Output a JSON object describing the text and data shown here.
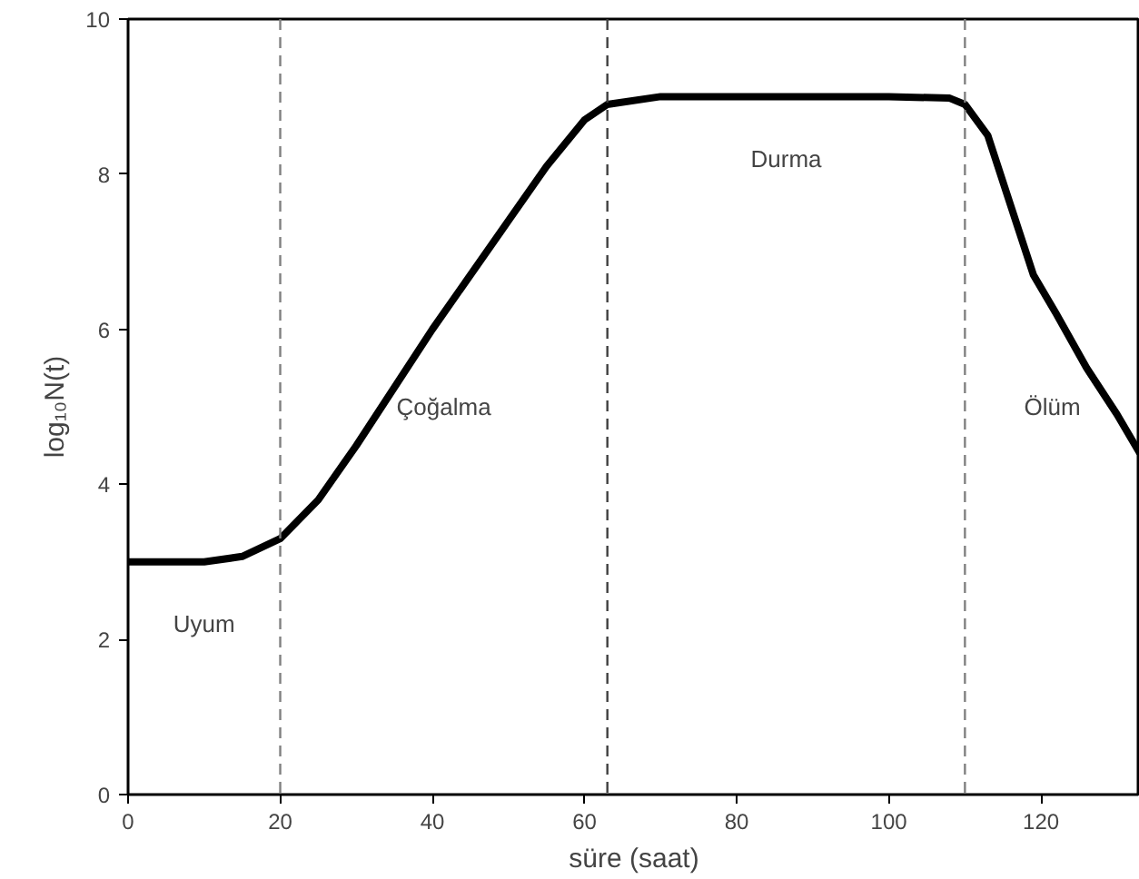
{
  "chart_data": {
    "type": "line",
    "xlabel": "süre (saat)",
    "ylabel": "log₁₀N(t)",
    "x": [
      0,
      10,
      15,
      20,
      25,
      30,
      40,
      50,
      55,
      60,
      63,
      70,
      100,
      108,
      110,
      113,
      116,
      119,
      122,
      126,
      130,
      133
    ],
    "series": [
      {
        "color": "#000000",
        "values": [
          3.0,
          3.0,
          3.07,
          3.3,
          3.8,
          4.5,
          6.0,
          7.4,
          8.1,
          8.7,
          8.9,
          9.0,
          9.0,
          8.98,
          8.9,
          8.5,
          7.6,
          6.7,
          6.2,
          5.5,
          4.9,
          4.4
        ]
      }
    ],
    "xlim": [
      0,
      133
    ],
    "ylim": [
      0,
      10
    ],
    "xticks": [
      0,
      20,
      40,
      60,
      80,
      100,
      120
    ],
    "yticks": [
      0,
      2,
      4,
      6,
      8,
      10
    ],
    "marker": "none",
    "line_style": "solid",
    "ref_lines": [
      {
        "axis": "x",
        "value": 20,
        "color": "#808080",
        "line_style": "dashed"
      },
      {
        "axis": "x",
        "value": 63,
        "color": "#404040",
        "line_style": "dashed"
      },
      {
        "axis": "x",
        "value": 110,
        "color": "#808080",
        "line_style": "dashed"
      }
    ],
    "annotations": [
      "Uyum",
      "Çoğalma",
      "Durma",
      "Ölüm"
    ]
  }
}
